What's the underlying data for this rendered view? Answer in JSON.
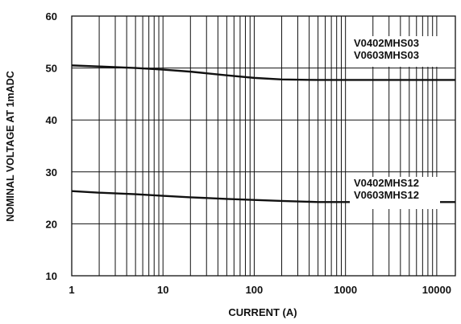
{
  "chart_data": {
    "type": "line",
    "title": "",
    "xlabel": "CURRENT (A)",
    "ylabel": "NOMINAL VOLTAGE AT 1mADC",
    "xscale": "log",
    "xlim": [
      1,
      16000
    ],
    "ylim": [
      10,
      60
    ],
    "xticks": [
      "1",
      "10",
      "100",
      "1000",
      "10000"
    ],
    "yticks": [
      "10",
      "20",
      "30",
      "40",
      "50",
      "60"
    ],
    "grid": true,
    "legend": "none",
    "series": [
      {
        "labels": [
          "V0402MHS03",
          "V0603MHS03"
        ],
        "x": [
          1,
          2,
          5,
          10,
          20,
          50,
          100,
          200,
          500,
          1000,
          2000,
          5000,
          10000,
          16000
        ],
        "y": [
          50.5,
          50.3,
          50.0,
          49.7,
          49.3,
          48.6,
          48.1,
          47.8,
          47.7,
          47.7,
          47.7,
          47.7,
          47.7,
          47.7
        ]
      },
      {
        "labels": [
          "V0402MHS12",
          "V0603MHS12"
        ],
        "x": [
          1,
          2,
          5,
          10,
          20,
          50,
          100,
          200,
          500,
          1000,
          2000,
          5000,
          10000,
          16000
        ],
        "y": [
          26.3,
          26.0,
          25.7,
          25.4,
          25.1,
          24.8,
          24.6,
          24.4,
          24.2,
          24.2,
          24.2,
          24.2,
          24.2,
          24.2
        ]
      }
    ]
  }
}
